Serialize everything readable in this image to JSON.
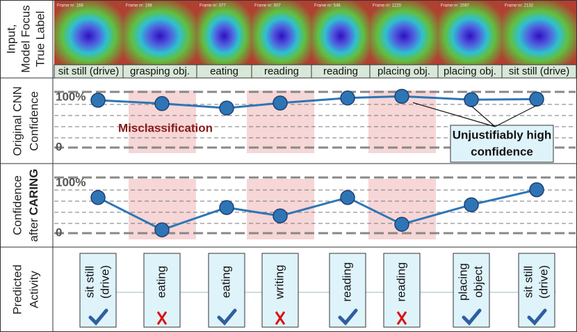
{
  "row_labels": [
    {
      "lines": [
        "Input,",
        "Model Focus",
        "True Label"
      ]
    },
    {
      "lines": [
        "Original CNN",
        "Confidence"
      ]
    },
    {
      "lines": [
        "Confidence",
        "after"
      ],
      "emphasis": "CARING"
    },
    {
      "lines": [
        "Predicted",
        "Activity"
      ]
    }
  ],
  "columns": [
    {
      "frame": "Frame nr: 168",
      "true_label": "sit still (drive)",
      "predicted": [
        "sit still",
        "(drive)"
      ],
      "correct": true
    },
    {
      "frame": "Frame nr: 198",
      "true_label": "grasping obj.",
      "predicted": [
        "eating"
      ],
      "correct": false
    },
    {
      "frame": "Frame nr: 377",
      "true_label": "eating",
      "predicted": [
        "eating"
      ],
      "correct": true
    },
    {
      "frame": "Frame nr: 507",
      "true_label": "reading",
      "predicted": [
        "writing"
      ],
      "correct": false
    },
    {
      "frame": "Frame nr: 546",
      "true_label": "reading",
      "predicted": [
        "reading"
      ],
      "correct": true
    },
    {
      "frame": "Frame nr: 1220",
      "true_label": "placing obj.",
      "predicted": [
        "reading"
      ],
      "correct": false
    },
    {
      "frame": "Frame nr: 2067",
      "true_label": "placing obj.",
      "predicted": [
        "placing",
        "object"
      ],
      "correct": true
    },
    {
      "frame": "Frame nr: 2132",
      "true_label": "sit still (drive)",
      "predicted": [
        "sit still",
        "(drive)"
      ],
      "correct": true
    }
  ],
  "charts": [
    {
      "name": "original",
      "values": [
        85,
        79,
        71,
        80,
        89,
        92,
        86,
        87
      ],
      "color": "#2e75b6",
      "ylim": [
        0,
        100
      ],
      "yticks": [
        {
          "value": 100,
          "label": "100%"
        },
        0
      ],
      "annotations": [
        "Misclassification",
        "Unjustifiably high",
        "confidence"
      ]
    },
    {
      "name": "caring",
      "values": [
        64,
        6,
        46,
        31,
        64,
        16,
        51,
        78
      ],
      "color": "#2e75b6",
      "ylim": [
        0,
        100
      ],
      "yticks": [
        {
          "value": 100,
          "label": "100%"
        },
        0
      ]
    }
  ]
}
